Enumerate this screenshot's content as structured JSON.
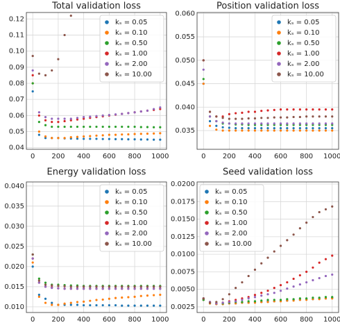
{
  "chart_data": [
    {
      "type": "scatter",
      "title": "Total validation loss",
      "x": [
        0,
        50,
        100,
        150,
        200,
        250,
        300,
        350,
        400,
        450,
        500,
        550,
        600,
        650,
        700,
        750,
        800,
        850,
        900,
        950,
        1000
      ],
      "series": [
        {
          "name": "kₛ = 0.05",
          "color": "#1f77b4",
          "values": [
            0.075,
            0.048,
            0.046,
            0.046,
            0.046,
            0.0458,
            0.0457,
            0.0456,
            0.0455,
            0.0455,
            0.0455,
            0.0454,
            0.0454,
            0.0453,
            0.0453,
            0.0452,
            0.0452,
            0.0451,
            0.0451,
            0.045,
            0.045
          ]
        },
        {
          "name": "kₛ = 0.10",
          "color": "#ff7f0e",
          "values": [
            0.08,
            0.05,
            0.047,
            0.046,
            0.046,
            0.046,
            0.0465,
            0.0467,
            0.047,
            0.0472,
            0.0475,
            0.0477,
            0.048,
            0.048,
            0.0482,
            0.0483,
            0.0485,
            0.0486,
            0.0487,
            0.0488,
            0.049
          ]
        },
        {
          "name": "kₛ = 0.50",
          "color": "#2ca02c",
          "values": [
            0.08,
            0.056,
            0.054,
            0.053,
            0.053,
            0.053,
            0.053,
            0.053,
            0.053,
            0.053,
            0.053,
            0.053,
            0.053,
            0.053,
            0.053,
            0.053,
            0.053,
            0.0528,
            0.0528,
            0.0527,
            0.0527
          ]
        },
        {
          "name": "kₛ = 1.00",
          "color": "#d62728",
          "values": [
            0.085,
            0.06,
            0.057,
            0.056,
            0.056,
            0.0565,
            0.057,
            0.0575,
            0.058,
            0.0585,
            0.059,
            0.0595,
            0.06,
            0.0605,
            0.061,
            0.0615,
            0.062,
            0.0625,
            0.063,
            0.0635,
            0.064
          ]
        },
        {
          "name": "kₛ = 2.00",
          "color": "#9467bd",
          "values": [
            0.088,
            0.062,
            0.059,
            0.058,
            0.058,
            0.058,
            0.058,
            0.0585,
            0.059,
            0.0593,
            0.0596,
            0.06,
            0.0603,
            0.0607,
            0.061,
            0.0615,
            0.062,
            0.0625,
            0.063,
            0.064,
            0.065
          ]
        },
        {
          "name": "kₛ = 10.00",
          "color": "#8c564b",
          "values": [
            0.097,
            0.086,
            0.085,
            0.088,
            0.095,
            0.11,
            0.122,
            null,
            null,
            null,
            null,
            null,
            null,
            null,
            null,
            null,
            null,
            null,
            null,
            null,
            null
          ]
        }
      ],
      "xlim": [
        -50,
        1050
      ],
      "ylim": [
        0.039,
        0.124
      ],
      "xticks": [
        0,
        200,
        400,
        600,
        800,
        1000
      ],
      "yticks": [
        0.04,
        0.05,
        0.06,
        0.07,
        0.08,
        0.09,
        {
          "value": 0.1,
          "label": "0.10"
        },
        0.11,
        0.12
      ],
      "grid": true,
      "legend_loc": "upper-right"
    },
    {
      "type": "scatter",
      "title": "Position validation loss",
      "x": [
        0,
        50,
        100,
        150,
        200,
        250,
        300,
        350,
        400,
        450,
        500,
        550,
        600,
        650,
        700,
        750,
        800,
        850,
        900,
        950,
        1000
      ],
      "series": [
        {
          "name": "kₛ = 0.05",
          "color": "#1f77b4",
          "values": [
            0.045,
            0.037,
            0.036,
            0.0357,
            0.0356,
            0.0355,
            0.0355,
            0.0355,
            0.0355,
            0.0355,
            0.0355,
            0.0355,
            0.0355,
            0.0355,
            0.0355,
            0.0355,
            0.0355,
            0.0355,
            0.0355,
            0.0355,
            0.0355
          ]
        },
        {
          "name": "kₛ = 0.10",
          "color": "#ff7f0e",
          "values": [
            0.045,
            0.036,
            0.0352,
            0.035,
            0.035,
            0.035,
            0.035,
            0.035,
            0.035,
            0.035,
            0.035,
            0.035,
            0.035,
            0.035,
            0.035,
            0.035,
            0.035,
            0.035,
            0.035,
            0.035,
            0.035
          ]
        },
        {
          "name": "kₛ = 0.50",
          "color": "#2ca02c",
          "values": [
            0.046,
            0.038,
            0.037,
            0.0365,
            0.0365,
            0.0363,
            0.0363,
            0.0362,
            0.0362,
            0.0362,
            0.0362,
            0.0362,
            0.0362,
            0.0362,
            0.0362,
            0.0362,
            0.0362,
            0.0362,
            0.0362,
            0.0362,
            0.0362
          ]
        },
        {
          "name": "kₛ = 1.00",
          "color": "#d62728",
          "values": [
            0.05,
            0.039,
            0.038,
            0.038,
            0.0385,
            0.0387,
            0.0388,
            0.039,
            0.039,
            0.0392,
            0.0393,
            0.0394,
            0.0395,
            0.0395,
            0.0395,
            0.0395,
            0.0395,
            0.0395,
            0.0395,
            0.0395,
            0.0395
          ]
        },
        {
          "name": "kₛ = 2.00",
          "color": "#9467bd",
          "values": [
            0.048,
            0.038,
            0.037,
            0.0367,
            0.0365,
            0.0365,
            0.0365,
            0.0365,
            0.0365,
            0.0365,
            0.0365,
            0.0365,
            0.0365,
            0.0365,
            0.0365,
            0.0365,
            0.0365,
            0.0365,
            0.0365,
            0.0365,
            0.0365
          ]
        },
        {
          "name": "kₛ = 10.00",
          "color": "#8c564b",
          "values": [
            0.05,
            0.039,
            0.038,
            0.0377,
            0.0375,
            0.0375,
            0.0375,
            0.0376,
            0.0376,
            0.0377,
            0.0377,
            0.0378,
            0.0378,
            0.0378,
            0.0379,
            0.0379,
            0.038,
            0.038,
            0.038,
            0.038,
            0.038
          ]
        }
      ],
      "xlim": [
        -50,
        1050
      ],
      "ylim": [
        0.031,
        0.0602
      ],
      "xticks": [
        0,
        200,
        400,
        600,
        800,
        1000
      ],
      "yticks": [
        0.035,
        {
          "value": 0.04,
          "label": "0.040"
        },
        0.045,
        {
          "value": 0.05,
          "label": "0.050"
        },
        0.055,
        {
          "value": 0.06,
          "label": "0.060"
        }
      ],
      "grid": true,
      "legend_loc": "upper-right"
    },
    {
      "type": "scatter",
      "title": "Energy validation loss",
      "x": [
        0,
        50,
        100,
        150,
        200,
        250,
        300,
        350,
        400,
        450,
        500,
        550,
        600,
        650,
        700,
        750,
        800,
        850,
        900,
        950,
        1000
      ],
      "series": [
        {
          "name": "kₛ = 0.05",
          "color": "#1f77b4",
          "values": [
            0.02,
            0.013,
            0.012,
            0.011,
            0.0105,
            0.0105,
            0.0105,
            0.0105,
            0.0104,
            0.0104,
            0.0104,
            0.0104,
            0.0104,
            0.0104,
            0.0103,
            0.0103,
            0.0103,
            0.0103,
            0.0103,
            0.0103,
            0.0103
          ]
        },
        {
          "name": "kₛ = 0.10",
          "color": "#ff7f0e",
          "values": [
            0.021,
            0.0125,
            0.011,
            0.0105,
            0.0105,
            0.0108,
            0.011,
            0.0112,
            0.0113,
            0.0115,
            0.0117,
            0.0118,
            0.012,
            0.0122,
            0.0123,
            0.0124,
            0.0125,
            0.0127,
            0.0128,
            0.0129,
            0.013
          ]
        },
        {
          "name": "kₛ = 0.50",
          "color": "#2ca02c",
          "values": [
            0.023,
            0.017,
            0.016,
            0.0155,
            0.0155,
            0.0154,
            0.0153,
            0.0153,
            0.0152,
            0.0152,
            0.0152,
            0.0152,
            0.0152,
            0.0152,
            0.0152,
            0.0152,
            0.0152,
            0.0152,
            0.0152,
            0.0152,
            0.0152
          ]
        },
        {
          "name": "kₛ = 1.00",
          "color": "#d62728",
          "values": [
            0.022,
            0.016,
            0.015,
            0.0148,
            0.0146,
            0.0145,
            0.0145,
            0.0145,
            0.0145,
            0.0145,
            0.0145,
            0.0145,
            0.0145,
            0.0145,
            0.0145,
            0.0145,
            0.0145,
            0.0145,
            0.0145,
            0.0145,
            0.0145
          ]
        },
        {
          "name": "kₛ = 2.00",
          "color": "#9467bd",
          "values": [
            0.022,
            0.016,
            0.015,
            0.0147,
            0.0146,
            0.0145,
            0.0145,
            0.0145,
            0.0145,
            0.0145,
            0.0145,
            0.0145,
            0.0145,
            0.0145,
            0.0145,
            0.0145,
            0.0145,
            0.0145,
            0.0145,
            0.0145,
            0.0145
          ]
        },
        {
          "name": "kₛ = 10.00",
          "color": "#8c564b",
          "values": [
            0.023,
            0.0165,
            0.0155,
            0.0153,
            0.0152,
            0.0151,
            0.015,
            0.015,
            0.015,
            0.015,
            0.015,
            0.015,
            0.015,
            0.015,
            0.015,
            0.015,
            0.015,
            0.015,
            0.015,
            0.015,
            0.015
          ]
        }
      ],
      "xlim": [
        -50,
        1050
      ],
      "ylim": [
        0.0086,
        0.041
      ],
      "xticks": [
        0,
        200,
        400,
        600,
        800,
        1000
      ],
      "yticks": [
        {
          "value": 0.01,
          "label": "0.010"
        },
        0.015,
        {
          "value": 0.02,
          "label": "0.020"
        },
        0.025,
        {
          "value": 0.03,
          "label": "0.030"
        },
        0.035,
        {
          "value": 0.04,
          "label": "0.040"
        }
      ],
      "grid": true,
      "legend_loc": "upper-right"
    },
    {
      "type": "scatter",
      "title": "Seed validation loss",
      "x": [
        0,
        50,
        100,
        150,
        200,
        250,
        300,
        350,
        400,
        450,
        500,
        550,
        600,
        650,
        700,
        750,
        800,
        850,
        900,
        950,
        1000
      ],
      "series": [
        {
          "name": "kₛ = 0.05",
          "color": "#1f77b4",
          "values": [
            0.0035,
            0.003,
            0.0029,
            0.0029,
            0.003,
            0.003,
            0.0031,
            0.0031,
            0.0032,
            0.0032,
            0.0033,
            0.0033,
            0.0034,
            0.0034,
            0.0035,
            0.0035,
            0.0036,
            0.0036,
            0.0037,
            0.0037,
            0.0038
          ]
        },
        {
          "name": "kₛ = 0.10",
          "color": "#ff7f0e",
          "values": [
            0.0035,
            0.003,
            0.0029,
            0.0029,
            0.003,
            0.003,
            0.0031,
            0.0031,
            0.0031,
            0.0032,
            0.0032,
            0.0033,
            0.0033,
            0.0034,
            0.0034,
            0.0035,
            0.0035,
            0.0036,
            0.0036,
            0.0037,
            0.0037
          ]
        },
        {
          "name": "kₛ = 0.50",
          "color": "#2ca02c",
          "values": [
            0.0035,
            0.0031,
            0.003,
            0.003,
            0.0031,
            0.0032,
            0.0032,
            0.0033,
            0.0033,
            0.0034,
            0.0035,
            0.0035,
            0.0035,
            0.0036,
            0.0036,
            0.0037,
            0.0037,
            0.0038,
            0.0038,
            0.0039,
            0.0039
          ]
        },
        {
          "name": "kₛ = 1.00",
          "color": "#d62728",
          "values": [
            0.0037,
            0.0032,
            0.003,
            0.0031,
            0.0033,
            0.0035,
            0.0037,
            0.0039,
            0.0042,
            0.0045,
            0.0048,
            0.0052,
            0.0056,
            0.006,
            0.0065,
            0.007,
            0.0075,
            0.0081,
            0.0088,
            0.0093,
            0.0098
          ]
        },
        {
          "name": "kₛ = 2.00",
          "color": "#9467bd",
          "values": [
            0.0037,
            0.0032,
            0.003,
            0.0031,
            0.0032,
            0.0033,
            0.0035,
            0.0037,
            0.0039,
            0.0041,
            0.0043,
            0.0045,
            0.0048,
            0.0051,
            0.0054,
            0.0057,
            0.006,
            0.0063,
            0.0066,
            0.0069,
            0.0071
          ]
        },
        {
          "name": "kₛ = 10.00",
          "color": "#8c564b",
          "values": [
            0.0037,
            0.0031,
            0.0032,
            0.0036,
            0.0043,
            0.0052,
            0.006,
            0.0069,
            0.0078,
            0.0087,
            0.0095,
            0.0104,
            0.0112,
            0.012,
            0.0128,
            0.0137,
            0.0145,
            0.0153,
            0.016,
            0.0164,
            0.0168
          ]
        }
      ],
      "xlim": [
        -50,
        1050
      ],
      "ylim": [
        0.0017,
        0.0203
      ],
      "xticks": [
        0,
        200,
        400,
        600,
        800,
        1000
      ],
      "yticks": [
        0.0025,
        {
          "value": 0.005,
          "label": "0.0050"
        },
        0.0075,
        {
          "value": 0.01,
          "label": "0.0100"
        },
        0.0125,
        {
          "value": 0.015,
          "label": "0.0150"
        },
        0.0175,
        {
          "value": 0.02,
          "label": "0.0200"
        }
      ],
      "grid": true,
      "legend_loc": "upper-left"
    }
  ]
}
